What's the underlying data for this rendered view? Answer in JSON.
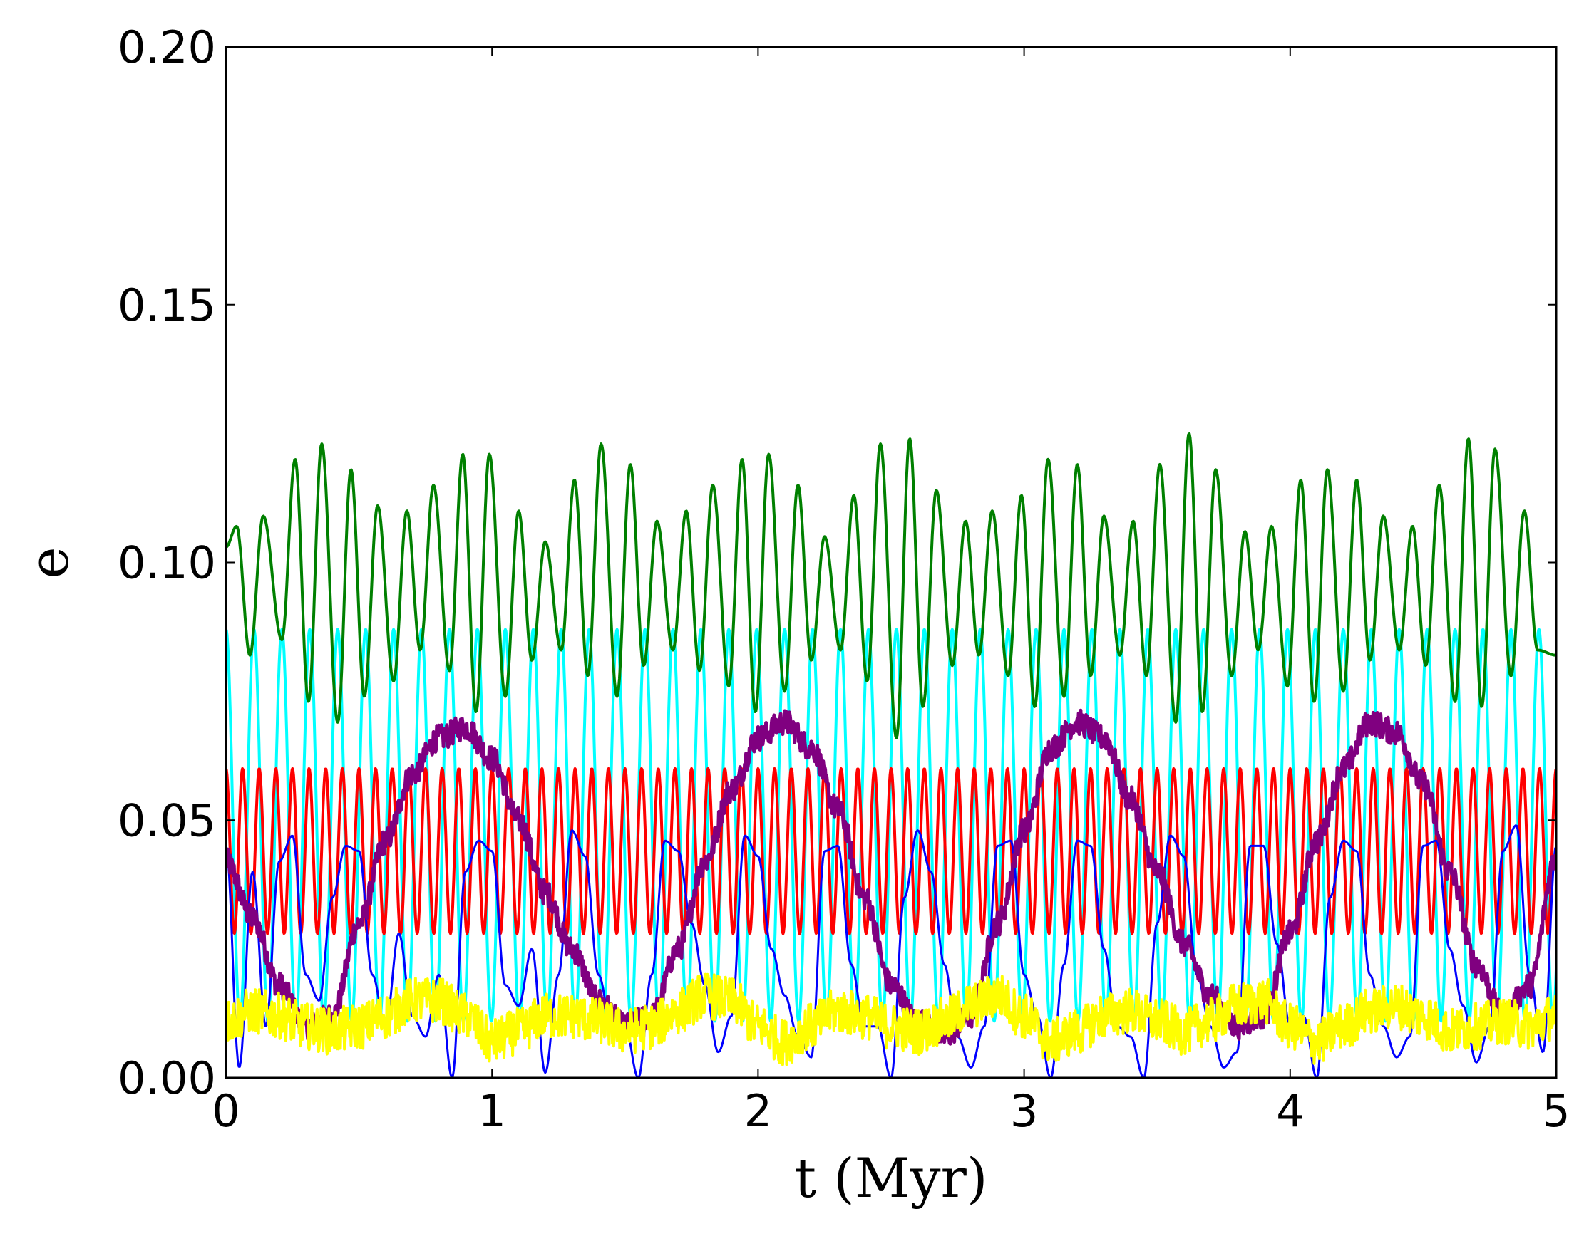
{
  "chart_data": {
    "type": "line",
    "title": "",
    "xlabel": "t (Myr)",
    "ylabel": "e",
    "xlim": [
      0,
      5
    ],
    "ylim": [
      0,
      0.2
    ],
    "xticks": [
      0,
      1,
      2,
      3,
      4,
      5
    ],
    "yticks": [
      0.0,
      0.05,
      0.1,
      0.15,
      0.2
    ],
    "xtick_labels": [
      "0",
      "1",
      "2",
      "3",
      "4",
      "5"
    ],
    "ytick_labels": [
      "0.00",
      "0.05",
      "0.10",
      "0.15",
      "0.20"
    ],
    "grid": false,
    "legend": "none",
    "series": [
      {
        "color": "#00ffff",
        "description_values": {
          "min_e": 0.011,
          "max_e": 0.087,
          "period_myr": 0.105
        },
        "x": [
          0.0,
          0.05,
          0.1,
          0.15,
          0.2,
          0.25,
          0.3,
          0.35,
          0.4,
          0.45,
          0.5,
          0.55,
          0.6,
          0.65,
          0.7,
          0.75,
          0.8,
          0.85,
          0.9,
          0.95,
          1.0
        ],
        "y": [
          0.087,
          0.05,
          0.012,
          0.05,
          0.087,
          0.05,
          0.012,
          0.05,
          0.087,
          0.05,
          0.012,
          0.05,
          0.087,
          0.05,
          0.012,
          0.05,
          0.087,
          0.05,
          0.012,
          0.05,
          0.087
        ]
      },
      {
        "color": "#008000",
        "x": [
          0.0,
          0.04,
          0.09,
          0.14,
          0.21,
          0.26,
          0.31,
          0.36,
          0.42,
          0.47,
          0.52,
          0.57,
          0.63,
          0.68,
          0.73,
          0.78,
          0.84,
          0.89,
          0.94,
          0.99,
          1.05,
          1.1,
          1.15,
          1.2,
          1.26,
          1.31,
          1.36,
          1.41,
          1.47,
          1.52,
          1.57,
          1.62,
          1.68,
          1.73,
          1.78,
          1.83,
          1.89,
          1.94,
          1.99,
          2.04,
          2.1,
          2.15,
          2.2,
          2.25,
          2.31,
          2.36,
          2.41,
          2.46,
          2.52,
          2.57,
          2.62,
          2.67,
          2.73,
          2.78,
          2.83,
          2.88,
          2.94,
          2.99,
          3.04,
          3.09,
          3.15,
          3.2,
          3.25,
          3.3,
          3.36,
          3.41,
          3.46,
          3.51,
          3.57,
          3.62,
          3.67,
          3.72,
          3.78,
          3.83,
          3.88,
          3.93,
          3.99,
          4.04,
          4.09,
          4.14,
          4.2,
          4.25,
          4.3,
          4.35,
          4.41,
          4.46,
          4.51,
          4.56,
          4.62,
          4.67,
          4.72,
          4.77,
          4.83,
          4.88,
          4.93,
          5.0
        ],
        "y": [
          0.103,
          0.107,
          0.082,
          0.109,
          0.085,
          0.12,
          0.073,
          0.123,
          0.069,
          0.118,
          0.074,
          0.111,
          0.077,
          0.11,
          0.083,
          0.115,
          0.079,
          0.121,
          0.071,
          0.121,
          0.074,
          0.11,
          0.081,
          0.104,
          0.083,
          0.116,
          0.078,
          0.123,
          0.074,
          0.119,
          0.08,
          0.108,
          0.083,
          0.11,
          0.079,
          0.115,
          0.076,
          0.12,
          0.071,
          0.121,
          0.075,
          0.115,
          0.081,
          0.105,
          0.083,
          0.113,
          0.077,
          0.123,
          0.066,
          0.124,
          0.072,
          0.114,
          0.08,
          0.108,
          0.082,
          0.11,
          0.078,
          0.113,
          0.072,
          0.12,
          0.074,
          0.119,
          0.078,
          0.109,
          0.082,
          0.108,
          0.078,
          0.119,
          0.069,
          0.125,
          0.071,
          0.118,
          0.078,
          0.106,
          0.083,
          0.107,
          0.076,
          0.116,
          0.073,
          0.118,
          0.075,
          0.116,
          0.081,
          0.109,
          0.083,
          0.107,
          0.08,
          0.115,
          0.073,
          0.124,
          0.072,
          0.122,
          0.078,
          0.11,
          0.083,
          0.082
        ]
      },
      {
        "color": "#ff0000",
        "description_values": {
          "min_e": 0.028,
          "max_e": 0.06,
          "period_myr": 0.0625
        }
      },
      {
        "color": "#0000ff",
        "x": [
          0.0,
          0.05,
          0.1,
          0.15,
          0.2,
          0.25,
          0.3,
          0.35,
          0.4,
          0.45,
          0.5,
          0.55,
          0.6,
          0.65,
          0.7,
          0.75,
          0.8,
          0.85,
          0.9,
          0.95,
          1.0,
          1.05,
          1.1,
          1.15,
          1.2,
          1.25,
          1.3,
          1.35,
          1.4,
          1.45,
          1.5,
          1.55,
          1.6,
          1.65,
          1.7,
          1.75,
          1.8,
          1.85,
          1.9,
          1.95,
          2.0,
          2.05,
          2.1,
          2.15,
          2.2,
          2.25,
          2.3,
          2.35,
          2.4,
          2.45,
          2.5,
          2.55,
          2.6,
          2.65,
          2.7,
          2.75,
          2.8,
          2.85,
          2.9,
          2.95,
          3.0,
          3.05,
          3.1,
          3.15,
          3.2,
          3.25,
          3.3,
          3.35,
          3.4,
          3.45,
          3.5,
          3.55,
          3.6,
          3.65,
          3.7,
          3.75,
          3.8,
          3.85,
          3.9,
          3.95,
          4.0,
          4.05,
          4.1,
          4.15,
          4.2,
          4.25,
          4.3,
          4.35,
          4.4,
          4.45,
          4.5,
          4.55,
          4.6,
          4.65,
          4.7,
          4.75,
          4.8,
          4.85,
          4.9,
          4.95,
          5.0
        ],
        "y": [
          0.045,
          0.002,
          0.04,
          0.01,
          0.042,
          0.047,
          0.02,
          0.015,
          0.035,
          0.045,
          0.044,
          0.02,
          0.01,
          0.028,
          0.012,
          0.008,
          0.02,
          0.0,
          0.04,
          0.046,
          0.044,
          0.018,
          0.014,
          0.025,
          0.001,
          0.02,
          0.048,
          0.043,
          0.02,
          0.01,
          0.01,
          0.0,
          0.02,
          0.046,
          0.044,
          0.03,
          0.018,
          0.005,
          0.012,
          0.047,
          0.043,
          0.025,
          0.016,
          0.008,
          0.004,
          0.044,
          0.045,
          0.022,
          0.01,
          0.01,
          0.0,
          0.035,
          0.048,
          0.04,
          0.022,
          0.008,
          0.002,
          0.01,
          0.045,
          0.046,
          0.02,
          0.012,
          0.0,
          0.022,
          0.046,
          0.045,
          0.025,
          0.01,
          0.008,
          0.0,
          0.03,
          0.047,
          0.043,
          0.02,
          0.01,
          0.002,
          0.005,
          0.045,
          0.045,
          0.026,
          0.01,
          0.012,
          0.0,
          0.035,
          0.046,
          0.044,
          0.02,
          0.01,
          0.004,
          0.008,
          0.045,
          0.046,
          0.025,
          0.014,
          0.003,
          0.01,
          0.044,
          0.049,
          0.02,
          0.005,
          0.045
        ]
      },
      {
        "color": "#800080",
        "x": [
          0.0,
          0.1,
          0.2,
          0.3,
          0.4,
          0.5,
          0.6,
          0.7,
          0.8,
          0.9,
          1.0,
          1.1,
          1.2,
          1.3,
          1.4,
          1.5,
          1.6,
          1.7,
          1.8,
          1.9,
          2.0,
          2.1,
          2.2,
          2.3,
          2.4,
          2.5,
          2.6,
          2.7,
          2.8,
          2.9,
          3.0,
          3.1,
          3.2,
          3.3,
          3.4,
          3.5,
          3.6,
          3.7,
          3.8,
          3.9,
          4.0,
          4.1,
          4.2,
          4.3,
          4.4,
          4.5,
          4.6,
          4.7,
          4.8,
          4.9,
          5.0
        ],
        "y": [
          0.042,
          0.031,
          0.018,
          0.01,
          0.012,
          0.03,
          0.046,
          0.059,
          0.066,
          0.068,
          0.062,
          0.05,
          0.036,
          0.025,
          0.015,
          0.01,
          0.012,
          0.025,
          0.042,
          0.056,
          0.066,
          0.069,
          0.064,
          0.052,
          0.035,
          0.018,
          0.011,
          0.008,
          0.012,
          0.03,
          0.048,
          0.064,
          0.069,
          0.066,
          0.054,
          0.04,
          0.026,
          0.016,
          0.01,
          0.012,
          0.028,
          0.046,
          0.06,
          0.069,
          0.067,
          0.057,
          0.04,
          0.022,
          0.012,
          0.018,
          0.043
        ]
      },
      {
        "color": "#ffff00",
        "x": [
          0.0,
          0.1,
          0.2,
          0.3,
          0.4,
          0.5,
          0.6,
          0.7,
          0.8,
          0.9,
          1.0,
          1.1,
          1.2,
          1.3,
          1.4,
          1.5,
          1.6,
          1.7,
          1.8,
          1.9,
          2.0,
          2.1,
          2.2,
          2.3,
          2.4,
          2.5,
          2.6,
          2.7,
          2.8,
          2.9,
          3.0,
          3.1,
          3.2,
          3.3,
          3.4,
          3.5,
          3.6,
          3.7,
          3.8,
          3.9,
          4.0,
          4.1,
          4.2,
          4.3,
          4.4,
          4.5,
          4.6,
          4.7,
          4.8,
          4.9,
          5.0
        ],
        "y": [
          0.011,
          0.013,
          0.012,
          0.01,
          0.009,
          0.01,
          0.012,
          0.015,
          0.015,
          0.012,
          0.007,
          0.009,
          0.012,
          0.012,
          0.011,
          0.009,
          0.01,
          0.013,
          0.016,
          0.015,
          0.01,
          0.007,
          0.01,
          0.013,
          0.012,
          0.01,
          0.009,
          0.011,
          0.014,
          0.016,
          0.012,
          0.007,
          0.009,
          0.012,
          0.013,
          0.011,
          0.009,
          0.011,
          0.014,
          0.015,
          0.01,
          0.007,
          0.01,
          0.013,
          0.014,
          0.012,
          0.009,
          0.01,
          0.011,
          0.01,
          0.012
        ]
      }
    ]
  }
}
